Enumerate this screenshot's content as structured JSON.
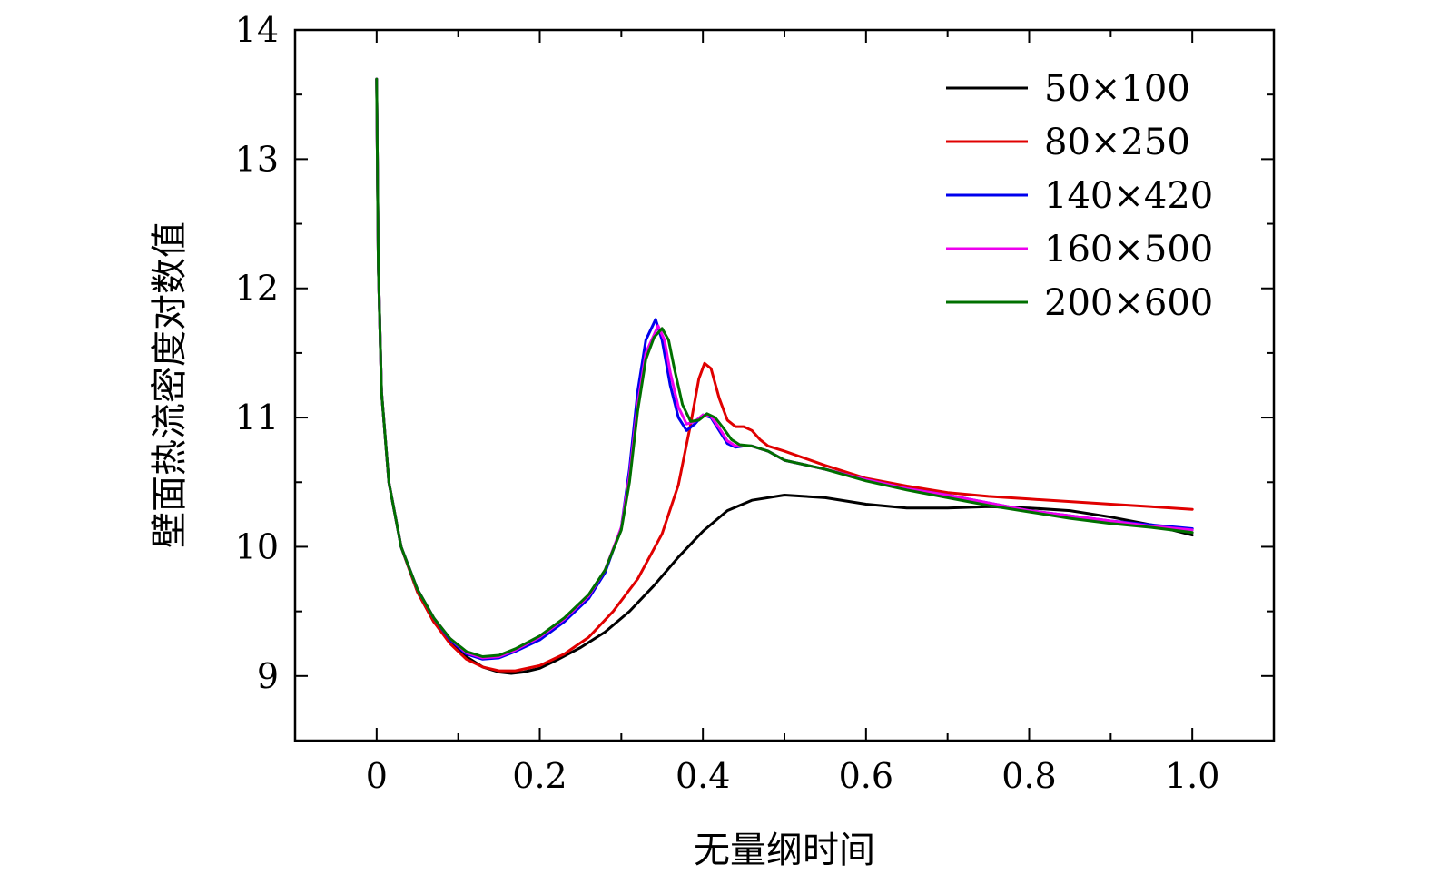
{
  "chart_data": {
    "type": "line",
    "xlabel": "无量纲时间",
    "ylabel": "壁面热流密度对数值",
    "xlim": [
      -0.1,
      1.1
    ],
    "ylim": [
      8.5,
      14
    ],
    "xticks": [
      0,
      0.2,
      0.4,
      0.6,
      0.8,
      1.0
    ],
    "xtick_labels": [
      "0",
      "0.2",
      "0.4",
      "0.6",
      "0.8",
      "1.0"
    ],
    "yticks": [
      9,
      10,
      11,
      12,
      13,
      14
    ],
    "ytick_labels": [
      "9",
      "10",
      "11",
      "12",
      "13",
      "14"
    ],
    "grid": false,
    "legend_position": "top-right",
    "series": [
      {
        "name": "50×100",
        "color": "#000000",
        "points": [
          [
            0,
            13.62
          ],
          [
            0.002,
            12.2
          ],
          [
            0.006,
            11.2
          ],
          [
            0.015,
            10.5
          ],
          [
            0.03,
            10.0
          ],
          [
            0.05,
            9.65
          ],
          [
            0.07,
            9.42
          ],
          [
            0.09,
            9.27
          ],
          [
            0.11,
            9.15
          ],
          [
            0.13,
            9.07
          ],
          [
            0.15,
            9.03
          ],
          [
            0.165,
            9.02
          ],
          [
            0.18,
            9.03
          ],
          [
            0.2,
            9.06
          ],
          [
            0.22,
            9.12
          ],
          [
            0.25,
            9.22
          ],
          [
            0.28,
            9.34
          ],
          [
            0.31,
            9.5
          ],
          [
            0.34,
            9.7
          ],
          [
            0.37,
            9.92
          ],
          [
            0.4,
            10.12
          ],
          [
            0.43,
            10.28
          ],
          [
            0.46,
            10.36
          ],
          [
            0.5,
            10.4
          ],
          [
            0.55,
            10.38
          ],
          [
            0.6,
            10.33
          ],
          [
            0.65,
            10.3
          ],
          [
            0.7,
            10.3
          ],
          [
            0.75,
            10.31
          ],
          [
            0.8,
            10.3
          ],
          [
            0.85,
            10.28
          ],
          [
            0.9,
            10.23
          ],
          [
            0.95,
            10.17
          ],
          [
            1.0,
            10.09
          ]
        ]
      },
      {
        "name": "80×250",
        "color": "#e00000",
        "points": [
          [
            0,
            13.62
          ],
          [
            0.002,
            12.2
          ],
          [
            0.006,
            11.2
          ],
          [
            0.015,
            10.5
          ],
          [
            0.03,
            10.0
          ],
          [
            0.05,
            9.65
          ],
          [
            0.07,
            9.42
          ],
          [
            0.09,
            9.25
          ],
          [
            0.11,
            9.13
          ],
          [
            0.13,
            9.07
          ],
          [
            0.15,
            9.04
          ],
          [
            0.17,
            9.04
          ],
          [
            0.2,
            9.08
          ],
          [
            0.23,
            9.17
          ],
          [
            0.26,
            9.3
          ],
          [
            0.29,
            9.5
          ],
          [
            0.32,
            9.75
          ],
          [
            0.35,
            10.1
          ],
          [
            0.37,
            10.48
          ],
          [
            0.385,
            10.95
          ],
          [
            0.395,
            11.3
          ],
          [
            0.402,
            11.42
          ],
          [
            0.41,
            11.38
          ],
          [
            0.42,
            11.15
          ],
          [
            0.43,
            10.98
          ],
          [
            0.44,
            10.93
          ],
          [
            0.45,
            10.93
          ],
          [
            0.46,
            10.9
          ],
          [
            0.47,
            10.83
          ],
          [
            0.48,
            10.78
          ],
          [
            0.5,
            10.74
          ],
          [
            0.55,
            10.63
          ],
          [
            0.6,
            10.53
          ],
          [
            0.65,
            10.47
          ],
          [
            0.7,
            10.42
          ],
          [
            0.75,
            10.39
          ],
          [
            0.8,
            10.37
          ],
          [
            0.85,
            10.35
          ],
          [
            0.9,
            10.33
          ],
          [
            0.95,
            10.31
          ],
          [
            1.0,
            10.29
          ]
        ]
      },
      {
        "name": "140×420",
        "color": "#0000ee",
        "points": [
          [
            0,
            13.62
          ],
          [
            0.002,
            12.2
          ],
          [
            0.006,
            11.2
          ],
          [
            0.015,
            10.5
          ],
          [
            0.03,
            10.0
          ],
          [
            0.05,
            9.67
          ],
          [
            0.07,
            9.45
          ],
          [
            0.09,
            9.28
          ],
          [
            0.11,
            9.17
          ],
          [
            0.13,
            9.13
          ],
          [
            0.15,
            9.14
          ],
          [
            0.17,
            9.19
          ],
          [
            0.2,
            9.28
          ],
          [
            0.23,
            9.42
          ],
          [
            0.26,
            9.6
          ],
          [
            0.28,
            9.8
          ],
          [
            0.3,
            10.15
          ],
          [
            0.31,
            10.6
          ],
          [
            0.32,
            11.2
          ],
          [
            0.33,
            11.6
          ],
          [
            0.342,
            11.76
          ],
          [
            0.35,
            11.6
          ],
          [
            0.36,
            11.25
          ],
          [
            0.37,
            11.0
          ],
          [
            0.38,
            10.9
          ],
          [
            0.39,
            10.95
          ],
          [
            0.4,
            11.02
          ],
          [
            0.41,
            11.0
          ],
          [
            0.42,
            10.9
          ],
          [
            0.43,
            10.8
          ],
          [
            0.44,
            10.77
          ],
          [
            0.45,
            10.78
          ],
          [
            0.46,
            10.78
          ],
          [
            0.48,
            10.74
          ],
          [
            0.5,
            10.67
          ],
          [
            0.55,
            10.6
          ],
          [
            0.6,
            10.52
          ],
          [
            0.65,
            10.45
          ],
          [
            0.7,
            10.4
          ],
          [
            0.75,
            10.34
          ],
          [
            0.8,
            10.28
          ],
          [
            0.85,
            10.24
          ],
          [
            0.9,
            10.2
          ],
          [
            0.95,
            10.17
          ],
          [
            1.0,
            10.14
          ]
        ]
      },
      {
        "name": "160×500",
        "color": "#ee00ee",
        "points": [
          [
            0,
            13.62
          ],
          [
            0.002,
            12.2
          ],
          [
            0.006,
            11.2
          ],
          [
            0.015,
            10.5
          ],
          [
            0.03,
            10.0
          ],
          [
            0.05,
            9.67
          ],
          [
            0.07,
            9.45
          ],
          [
            0.09,
            9.29
          ],
          [
            0.11,
            9.18
          ],
          [
            0.13,
            9.14
          ],
          [
            0.15,
            9.15
          ],
          [
            0.17,
            9.2
          ],
          [
            0.2,
            9.3
          ],
          [
            0.23,
            9.44
          ],
          [
            0.26,
            9.62
          ],
          [
            0.28,
            9.82
          ],
          [
            0.3,
            10.15
          ],
          [
            0.31,
            10.55
          ],
          [
            0.32,
            11.1
          ],
          [
            0.33,
            11.5
          ],
          [
            0.345,
            11.71
          ],
          [
            0.353,
            11.6
          ],
          [
            0.36,
            11.35
          ],
          [
            0.37,
            11.08
          ],
          [
            0.38,
            10.95
          ],
          [
            0.39,
            10.97
          ],
          [
            0.4,
            11.02
          ],
          [
            0.41,
            11.01
          ],
          [
            0.42,
            10.92
          ],
          [
            0.43,
            10.82
          ],
          [
            0.44,
            10.78
          ],
          [
            0.45,
            10.78
          ],
          [
            0.46,
            10.78
          ],
          [
            0.48,
            10.74
          ],
          [
            0.5,
            10.67
          ],
          [
            0.55,
            10.6
          ],
          [
            0.6,
            10.52
          ],
          [
            0.65,
            10.45
          ],
          [
            0.7,
            10.4
          ],
          [
            0.75,
            10.34
          ],
          [
            0.8,
            10.28
          ],
          [
            0.85,
            10.24
          ],
          [
            0.9,
            10.2
          ],
          [
            0.95,
            10.16
          ],
          [
            1.0,
            10.13
          ]
        ]
      },
      {
        "name": "200×600",
        "color": "#007000",
        "points": [
          [
            0,
            13.62
          ],
          [
            0.002,
            12.2
          ],
          [
            0.006,
            11.2
          ],
          [
            0.015,
            10.5
          ],
          [
            0.03,
            10.0
          ],
          [
            0.05,
            9.67
          ],
          [
            0.07,
            9.45
          ],
          [
            0.09,
            9.29
          ],
          [
            0.11,
            9.19
          ],
          [
            0.13,
            9.15
          ],
          [
            0.15,
            9.16
          ],
          [
            0.17,
            9.21
          ],
          [
            0.2,
            9.31
          ],
          [
            0.23,
            9.45
          ],
          [
            0.26,
            9.63
          ],
          [
            0.28,
            9.82
          ],
          [
            0.3,
            10.13
          ],
          [
            0.31,
            10.5
          ],
          [
            0.32,
            11.05
          ],
          [
            0.33,
            11.45
          ],
          [
            0.34,
            11.62
          ],
          [
            0.35,
            11.69
          ],
          [
            0.358,
            11.6
          ],
          [
            0.365,
            11.38
          ],
          [
            0.375,
            11.1
          ],
          [
            0.385,
            10.97
          ],
          [
            0.395,
            10.98
          ],
          [
            0.405,
            11.03
          ],
          [
            0.415,
            11.0
          ],
          [
            0.425,
            10.92
          ],
          [
            0.435,
            10.83
          ],
          [
            0.445,
            10.79
          ],
          [
            0.46,
            10.78
          ],
          [
            0.48,
            10.74
          ],
          [
            0.5,
            10.67
          ],
          [
            0.55,
            10.6
          ],
          [
            0.6,
            10.51
          ],
          [
            0.65,
            10.44
          ],
          [
            0.7,
            10.38
          ],
          [
            0.75,
            10.32
          ],
          [
            0.8,
            10.27
          ],
          [
            0.85,
            10.22
          ],
          [
            0.9,
            10.18
          ],
          [
            0.95,
            10.15
          ],
          [
            1.0,
            10.11
          ]
        ]
      }
    ]
  }
}
